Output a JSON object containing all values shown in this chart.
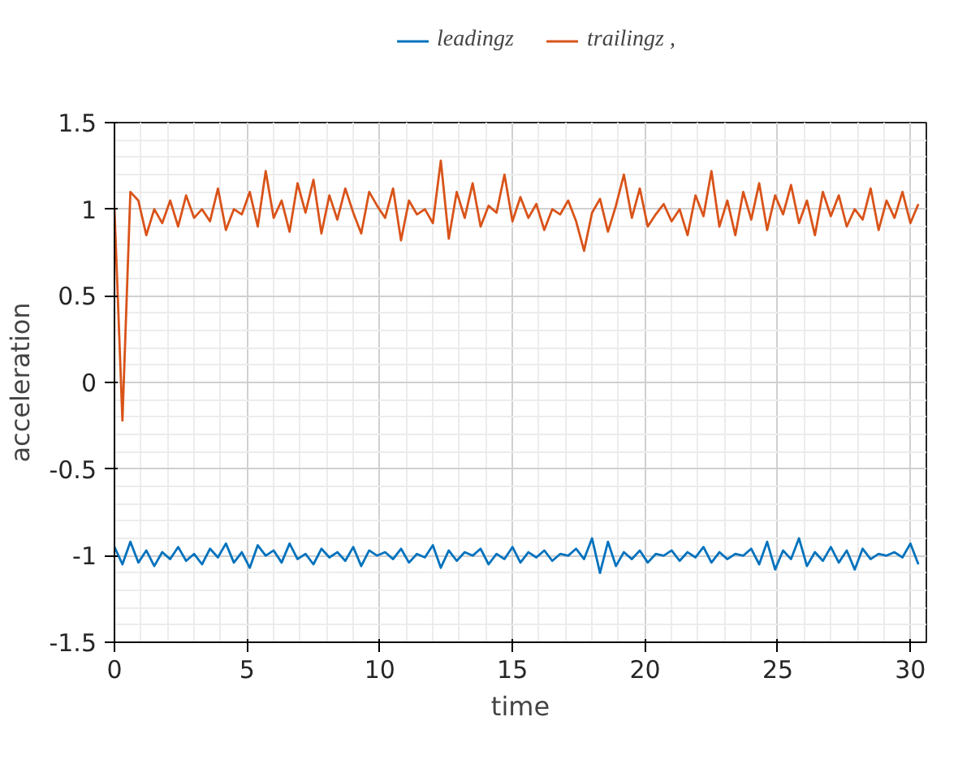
{
  "chart_data": {
    "type": "line",
    "xlabel": "time",
    "ylabel": "acceleration",
    "x": [
      0,
      0.3,
      0.6,
      0.9,
      1.2,
      1.5,
      1.8,
      2.1,
      2.4,
      2.7,
      3,
      3.3,
      3.6,
      3.9,
      4.2,
      4.5,
      4.8,
      5.1,
      5.4,
      5.7,
      6,
      6.3,
      6.6,
      6.9,
      7.2,
      7.5,
      7.8,
      8.1,
      8.4,
      8.7,
      9,
      9.3,
      9.6,
      9.9,
      10.2,
      10.5,
      10.8,
      11.1,
      11.4,
      11.7,
      12,
      12.3,
      12.6,
      12.9,
      13.2,
      13.5,
      13.8,
      14.1,
      14.4,
      14.7,
      15,
      15.3,
      15.6,
      15.9,
      16.2,
      16.5,
      16.8,
      17.1,
      17.4,
      17.7,
      18,
      18.3,
      18.6,
      18.9,
      19.2,
      19.5,
      19.8,
      20.1,
      20.4,
      20.7,
      21,
      21.3,
      21.6,
      21.9,
      22.2,
      22.5,
      22.8,
      23.1,
      23.4,
      23.7,
      24,
      24.3,
      24.6,
      24.9,
      25.2,
      25.5,
      25.8,
      26.1,
      26.4,
      26.7,
      27,
      27.3,
      27.6,
      27.9,
      28.2,
      28.5,
      28.8,
      29.1,
      29.4,
      29.7,
      30,
      30.3
    ],
    "series": [
      {
        "name": "leadingz",
        "color": "#0072bd",
        "values": [
          -0.95,
          -1.05,
          -0.92,
          -1.04,
          -0.97,
          -1.06,
          -0.98,
          -1.02,
          -0.95,
          -1.03,
          -0.99,
          -1.05,
          -0.96,
          -1.01,
          -0.93,
          -1.04,
          -0.98,
          -1.07,
          -0.94,
          -1.0,
          -0.97,
          -1.04,
          -0.93,
          -1.02,
          -0.99,
          -1.05,
          -0.96,
          -1.01,
          -0.98,
          -1.03,
          -0.95,
          -1.06,
          -0.97,
          -1.0,
          -0.98,
          -1.02,
          -0.96,
          -1.04,
          -0.99,
          -1.01,
          -0.94,
          -1.07,
          -0.97,
          -1.03,
          -0.98,
          -1.0,
          -0.96,
          -1.05,
          -0.99,
          -1.02,
          -0.95,
          -1.04,
          -0.98,
          -1.01,
          -0.97,
          -1.03,
          -0.99,
          -1.0,
          -0.96,
          -1.02,
          -0.9,
          -1.1,
          -0.92,
          -1.06,
          -0.98,
          -1.02,
          -0.97,
          -1.04,
          -0.99,
          -1.0,
          -0.97,
          -1.03,
          -0.98,
          -1.01,
          -0.95,
          -1.04,
          -0.98,
          -1.02,
          -0.99,
          -1.0,
          -0.96,
          -1.05,
          -0.92,
          -1.08,
          -0.97,
          -1.02,
          -0.9,
          -1.06,
          -0.98,
          -1.03,
          -0.95,
          -1.04,
          -0.97,
          -1.08,
          -0.96,
          -1.02,
          -0.99,
          -1.0,
          -0.98,
          -1.01,
          -0.93,
          -1.05
        ]
      },
      {
        "name": "trailingz ,",
        "color": "#d95319",
        "values": [
          1.0,
          -0.22,
          1.1,
          1.05,
          0.85,
          1.0,
          0.92,
          1.05,
          0.9,
          1.08,
          0.95,
          1.0,
          0.93,
          1.12,
          0.88,
          1.0,
          0.97,
          1.1,
          0.9,
          1.22,
          0.95,
          1.05,
          0.87,
          1.15,
          0.98,
          1.17,
          0.86,
          1.08,
          0.94,
          1.12,
          0.98,
          0.86,
          1.1,
          1.02,
          0.95,
          1.12,
          0.82,
          1.05,
          0.97,
          1.0,
          0.92,
          1.28,
          0.83,
          1.1,
          0.95,
          1.15,
          0.9,
          1.02,
          0.98,
          1.2,
          0.93,
          1.07,
          0.95,
          1.03,
          0.88,
          1.0,
          0.97,
          1.05,
          0.93,
          0.76,
          0.98,
          1.06,
          0.87,
          1.02,
          1.2,
          0.95,
          1.12,
          0.9,
          0.97,
          1.03,
          0.93,
          1.0,
          0.85,
          1.08,
          0.96,
          1.22,
          0.9,
          1.05,
          0.85,
          1.1,
          0.94,
          1.15,
          0.88,
          1.08,
          0.97,
          1.14,
          0.92,
          1.05,
          0.85,
          1.1,
          0.96,
          1.08,
          0.9,
          1.0,
          0.94,
          1.12,
          0.88,
          1.05,
          0.95,
          1.1,
          0.92,
          1.03
        ]
      }
    ],
    "xlim": [
      0,
      30.6
    ],
    "xticks": [
      0,
      5,
      10,
      15,
      20,
      25,
      30
    ],
    "ylim": [
      -1.5,
      1.5
    ],
    "yticks": [
      -1.5,
      -1,
      -0.5,
      0,
      0.5,
      1,
      1.5
    ],
    "grid": true,
    "legend": "top"
  }
}
